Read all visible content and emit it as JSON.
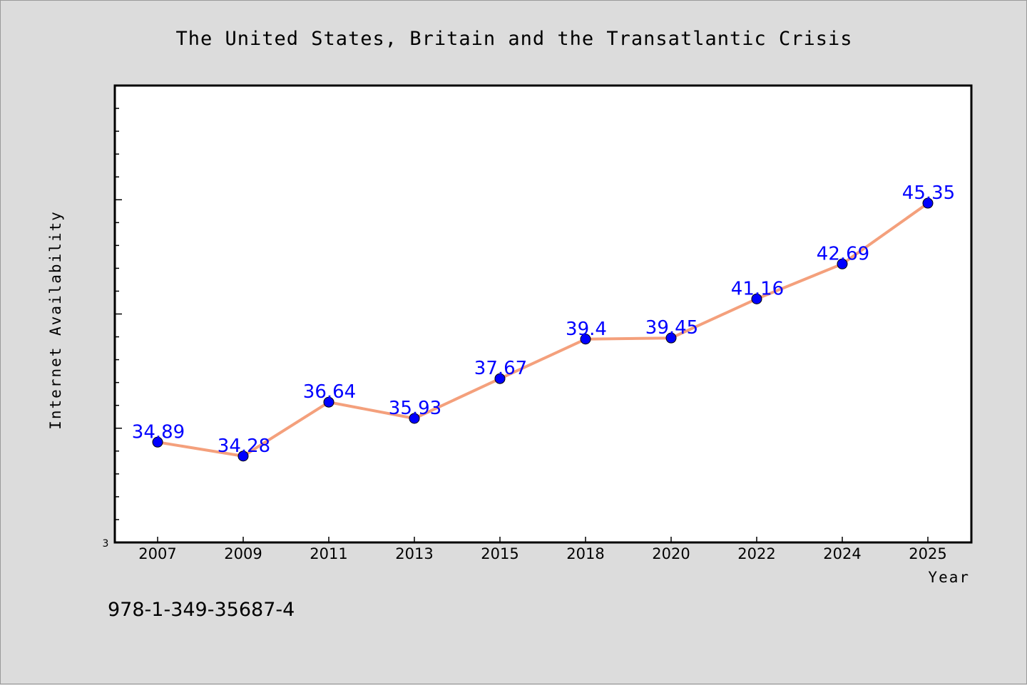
{
  "chart_data": {
    "type": "line",
    "title": "The United States, Britain and the Transatlantic Crisis",
    "xlabel": "Year",
    "ylabel": "Internet Availability",
    "categories": [
      "2007",
      "2009",
      "2011",
      "2013",
      "2015",
      "2018",
      "2020",
      "2022",
      "2024",
      "2025"
    ],
    "series": [
      {
        "values": [
          34.89,
          34.28,
          36.64,
          35.93,
          37.67,
          39.4,
          39.45,
          41.16,
          42.69,
          45.35
        ],
        "line_color": "#f4a07c",
        "marker_color": "#0000ff",
        "label_color": "#0000ff"
      }
    ],
    "y_min_label": "3",
    "ylim": [
      30.5,
      50.5
    ],
    "grid": false,
    "legend": "none"
  },
  "caption": "978-1-349-35687-4"
}
